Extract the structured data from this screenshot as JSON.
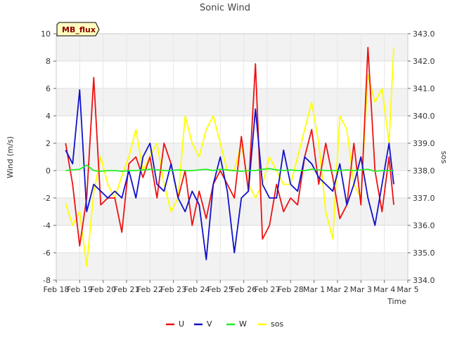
{
  "chart_data": {
    "type": "line",
    "title": "Sonic Wind",
    "xlabel": "Time",
    "ylabel": "Wind (m/s)",
    "y2label": "sos",
    "badge": "MB_flux",
    "ylim": [
      -8,
      10
    ],
    "y2lim": [
      334.0,
      343.0
    ],
    "y_ticks": [
      "-8",
      "-6",
      "-4",
      "-2",
      "0",
      "2",
      "4",
      "6",
      "8",
      "10"
    ],
    "y2_ticks": [
      "334.0",
      "335.0",
      "336.0",
      "337.0",
      "338.0",
      "339.0",
      "340.0",
      "341.0",
      "342.0",
      "343.0"
    ],
    "x_ticks": [
      "Feb 18",
      "Feb 19",
      "Feb 20",
      "Feb 21",
      "Feb 22",
      "Feb 23",
      "Feb 24",
      "Feb 25",
      "Feb 26",
      "Feb 27",
      "Feb 28",
      "Mar 1",
      "Mar 2",
      "Mar 3",
      "Mar 4",
      "Mar 5"
    ],
    "x": [
      0.4,
      0.7,
      1.0,
      1.3,
      1.6,
      1.9,
      2.2,
      2.5,
      2.8,
      3.1,
      3.4,
      3.7,
      4.0,
      4.3,
      4.6,
      4.9,
      5.2,
      5.5,
      5.8,
      6.1,
      6.4,
      6.7,
      7.0,
      7.3,
      7.6,
      7.9,
      8.2,
      8.5,
      8.8,
      9.1,
      9.4,
      9.7,
      10.0,
      10.3,
      10.6,
      10.9,
      11.2,
      11.5,
      11.8,
      12.1,
      12.4,
      12.7,
      13.0,
      13.3,
      13.6,
      13.9,
      14.2,
      14.4
    ],
    "grid": true,
    "legend": "bottom",
    "series": [
      {
        "name": "U",
        "color": "#ee1111",
        "axis": "left",
        "values": [
          2.0,
          -1.0,
          -5.5,
          -2.0,
          6.8,
          -2.5,
          -2.0,
          -2.0,
          -4.5,
          0.5,
          1.0,
          -0.5,
          1.0,
          -2.0,
          2.0,
          0.5,
          -2.0,
          0.0,
          -4.0,
          -1.5,
          -3.5,
          -1.0,
          0.0,
          -1.0,
          -2.0,
          2.5,
          -1.5,
          7.8,
          -5.0,
          -4.0,
          -1.0,
          -3.0,
          -2.0,
          -2.5,
          1.0,
          3.0,
          -1.0,
          2.0,
          -0.5,
          -3.5,
          -2.5,
          2.0,
          -2.5,
          9.0,
          0.0,
          -3.0,
          1.0,
          -2.5
        ]
      },
      {
        "name": "V",
        "color": "#1111cc",
        "axis": "left",
        "values": [
          1.5,
          0.5,
          5.9,
          -3.0,
          -1.0,
          -1.5,
          -2.0,
          -1.5,
          -2.0,
          0.0,
          -2.0,
          1.0,
          2.0,
          -1.0,
          -1.5,
          0.5,
          -2.0,
          -3.0,
          -1.5,
          -2.5,
          -6.5,
          -1.0,
          1.0,
          -1.5,
          -6.0,
          -2.0,
          -1.5,
          4.5,
          -1.0,
          -2.0,
          -2.0,
          1.5,
          -1.0,
          -1.5,
          1.0,
          0.5,
          -0.5,
          -1.0,
          -1.5,
          0.5,
          -2.5,
          -1.0,
          1.0,
          -2.0,
          -4.0,
          -1.0,
          2.0,
          -1.0
        ]
      },
      {
        "name": "W",
        "color": "#22ee22",
        "axis": "left",
        "values": [
          0.0,
          0.05,
          0.1,
          0.4,
          0.0,
          -0.05,
          0.0,
          0.0,
          -0.05,
          0.0,
          0.0,
          0.05,
          0.1,
          0.05,
          0.0,
          0.0,
          0.05,
          0.0,
          0.0,
          0.05,
          0.1,
          0.0,
          0.1,
          0.05,
          0.0,
          -0.05,
          0.0,
          0.0,
          0.1,
          0.15,
          0.05,
          0.0,
          0.05,
          0.0,
          0.0,
          0.1,
          0.05,
          0.0,
          0.0,
          0.0,
          0.05,
          0.0,
          0.05,
          0.1,
          -0.05,
          0.0,
          0.0,
          0.0
        ]
      },
      {
        "name": "sos",
        "color": "#ffff00",
        "axis": "right",
        "values": [
          336.8,
          336.0,
          336.5,
          334.5,
          337.2,
          338.5,
          337.5,
          337.0,
          337.8,
          338.5,
          339.5,
          338.0,
          338.5,
          339.0,
          337.5,
          336.5,
          337.0,
          340.0,
          339.0,
          338.5,
          339.5,
          340.0,
          339.0,
          338.0,
          338.0,
          339.0,
          337.5,
          337.0,
          337.5,
          338.5,
          338.0,
          337.5,
          337.5,
          338.5,
          339.5,
          340.5,
          339.0,
          336.5,
          335.5,
          340.0,
          339.5,
          337.5,
          337.0,
          341.5,
          340.5,
          341.0,
          339.0,
          342.5
        ]
      }
    ]
  }
}
